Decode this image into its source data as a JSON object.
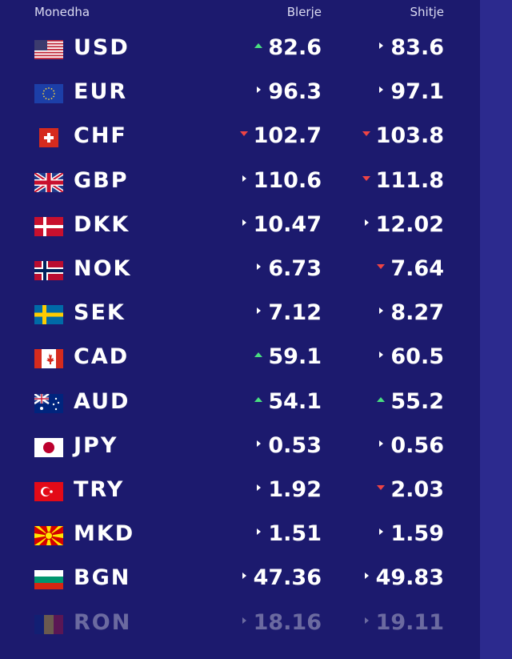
{
  "header": {
    "currency": "Monedha",
    "buy": "Blerje",
    "sell": "Shitje"
  },
  "colors": {
    "background": "#1c1a6e",
    "sidebar": "#2c2a8e",
    "up": "#4ade80",
    "down": "#ef4444",
    "neutral": "#ffffff"
  },
  "rates": [
    {
      "code": "USD",
      "flag": "us",
      "buy": "82.6",
      "buy_trend": "up",
      "sell": "83.6",
      "sell_trend": "neutral"
    },
    {
      "code": "EUR",
      "flag": "eu",
      "buy": "96.3",
      "buy_trend": "neutral",
      "sell": "97.1",
      "sell_trend": "neutral"
    },
    {
      "code": "CHF",
      "flag": "ch",
      "buy": "102.7",
      "buy_trend": "down",
      "sell": "103.8",
      "sell_trend": "down"
    },
    {
      "code": "GBP",
      "flag": "gb",
      "buy": "110.6",
      "buy_trend": "neutral",
      "sell": "111.8",
      "sell_trend": "down"
    },
    {
      "code": "DKK",
      "flag": "dk",
      "buy": "10.47",
      "buy_trend": "neutral",
      "sell": "12.02",
      "sell_trend": "neutral"
    },
    {
      "code": "NOK",
      "flag": "no",
      "buy": "6.73",
      "buy_trend": "neutral",
      "sell": "7.64",
      "sell_trend": "down"
    },
    {
      "code": "SEK",
      "flag": "se",
      "buy": "7.12",
      "buy_trend": "neutral",
      "sell": "8.27",
      "sell_trend": "neutral"
    },
    {
      "code": "CAD",
      "flag": "ca",
      "buy": "59.1",
      "buy_trend": "up",
      "sell": "60.5",
      "sell_trend": "neutral"
    },
    {
      "code": "AUD",
      "flag": "au",
      "buy": "54.1",
      "buy_trend": "up",
      "sell": "55.2",
      "sell_trend": "up"
    },
    {
      "code": "JPY",
      "flag": "jp",
      "buy": "0.53",
      "buy_trend": "neutral",
      "sell": "0.56",
      "sell_trend": "neutral"
    },
    {
      "code": "TRY",
      "flag": "tr",
      "buy": "1.92",
      "buy_trend": "neutral",
      "sell": "2.03",
      "sell_trend": "down"
    },
    {
      "code": "MKD",
      "flag": "mk",
      "buy": "1.51",
      "buy_trend": "neutral",
      "sell": "1.59",
      "sell_trend": "neutral"
    },
    {
      "code": "BGN",
      "flag": "bg",
      "buy": "47.36",
      "buy_trend": "neutral",
      "sell": "49.83",
      "sell_trend": "neutral"
    },
    {
      "code": "RON",
      "flag": "ro",
      "buy": "18.16",
      "buy_trend": "neutral",
      "sell": "19.11",
      "sell_trend": "neutral"
    }
  ]
}
